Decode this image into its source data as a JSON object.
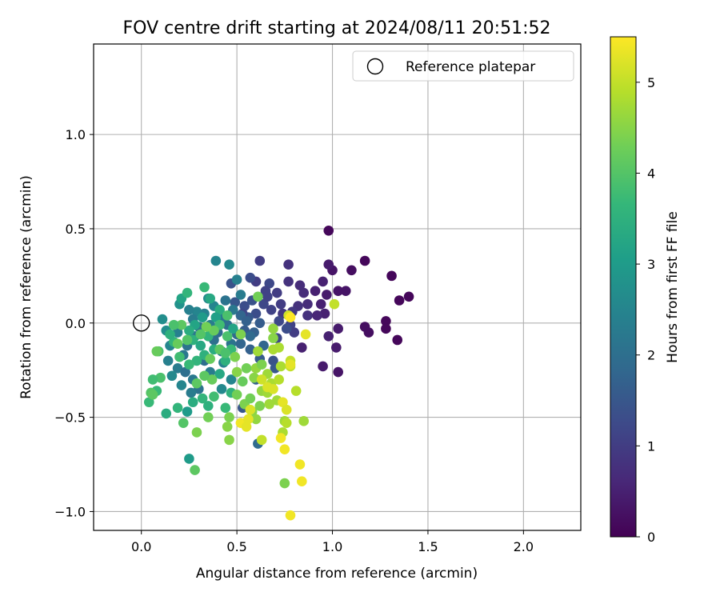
{
  "chart_data": {
    "type": "scatter",
    "title": "FOV centre drift starting at 2024/08/11 20:51:52",
    "xlabel": "Angular distance from reference (arcmin)",
    "ylabel": "Rotation from reference (arcmin)",
    "xlim": [
      -0.25,
      2.3
    ],
    "ylim": [
      -1.1,
      1.48
    ],
    "xticks": [
      0.0,
      0.5,
      1.0,
      1.5,
      2.0
    ],
    "xtick_labels": [
      "0.0",
      "0.5",
      "1.0",
      "1.5",
      "2.0"
    ],
    "yticks": [
      -1.0,
      -0.5,
      0.0,
      0.5,
      1.0
    ],
    "ytick_labels": [
      "−1.0",
      "−0.5",
      "0.0",
      "0.5",
      "1.0"
    ],
    "grid": true,
    "legend": {
      "placement": "top-right",
      "entries": [
        "Reference platepar"
      ]
    },
    "reference_point": {
      "x": 0.0,
      "y": 0.0,
      "label": "Reference platepar"
    },
    "colorbar": {
      "label": "Hours from first FF file",
      "range": [
        0,
        5.5
      ],
      "ticks": [
        0,
        1,
        2,
        3,
        4,
        5
      ],
      "tick_labels": [
        "0",
        "1",
        "2",
        "3",
        "4",
        "5"
      ],
      "colormap": "viridis"
    },
    "colors": {
      "viridis": [
        "#440154",
        "#482878",
        "#3e4989",
        "#31688e",
        "#26828e",
        "#1f9e89",
        "#35b779",
        "#6ece58",
        "#b5de2b",
        "#fde725"
      ]
    },
    "points": [
      [
        0.98,
        0.49,
        0.1
      ],
      [
        1.17,
        0.33,
        0.1
      ],
      [
        1.1,
        0.28,
        0.2
      ],
      [
        1.31,
        0.25,
        0.1
      ],
      [
        1.4,
        0.14,
        0.1
      ],
      [
        1.35,
        0.12,
        0.1
      ],
      [
        1.28,
        0.01,
        0.1
      ],
      [
        1.17,
        -0.02,
        0.2
      ],
      [
        1.19,
        -0.05,
        0.2
      ],
      [
        1.28,
        -0.03,
        0.1
      ],
      [
        1.34,
        -0.09,
        0.1
      ],
      [
        1.03,
        -0.26,
        0.3
      ],
      [
        0.95,
        -0.23,
        0.4
      ],
      [
        1.0,
        0.28,
        0.3
      ],
      [
        0.98,
        0.31,
        0.4
      ],
      [
        1.03,
        0.17,
        0.3
      ],
      [
        0.97,
        0.15,
        0.4
      ],
      [
        1.07,
        0.17,
        0.3
      ],
      [
        0.95,
        0.22,
        0.5
      ],
      [
        0.91,
        0.17,
        0.5
      ],
      [
        0.96,
        0.05,
        0.5
      ],
      [
        1.03,
        -0.03,
        0.4
      ],
      [
        0.98,
        -0.07,
        0.5
      ],
      [
        1.02,
        -0.13,
        0.4
      ],
      [
        0.84,
        -0.13,
        0.5
      ],
      [
        0.62,
        0.33,
        1.0
      ],
      [
        0.77,
        0.31,
        0.8
      ],
      [
        0.77,
        0.22,
        0.8
      ],
      [
        0.83,
        0.2,
        0.7
      ],
      [
        0.85,
        0.16,
        0.7
      ],
      [
        0.87,
        0.1,
        0.7
      ],
      [
        0.87,
        0.04,
        0.8
      ],
      [
        0.92,
        0.04,
        0.6
      ],
      [
        0.94,
        0.1,
        0.5
      ],
      [
        0.82,
        0.09,
        0.8
      ],
      [
        0.79,
        0.06,
        0.9
      ],
      [
        0.73,
        0.1,
        1.0
      ],
      [
        0.74,
        0.05,
        0.9
      ],
      [
        0.71,
        0.16,
        1.0
      ],
      [
        0.67,
        0.21,
        1.2
      ],
      [
        0.65,
        0.17,
        1.1
      ],
      [
        0.6,
        0.22,
        1.0
      ],
      [
        0.57,
        0.24,
        1.3
      ],
      [
        0.64,
        0.1,
        1.2
      ],
      [
        0.68,
        0.07,
        1.1
      ],
      [
        0.72,
        0.01,
        1.2
      ],
      [
        0.78,
        -0.01,
        1.1
      ],
      [
        0.8,
        -0.05,
        1.0
      ],
      [
        0.76,
        -0.03,
        1.3
      ],
      [
        0.71,
        -0.08,
        1.2
      ],
      [
        0.69,
        -0.2,
        1.4
      ],
      [
        0.7,
        -0.24,
        1.5
      ],
      [
        0.62,
        -0.19,
        1.6
      ],
      [
        0.6,
        -0.3,
        1.7
      ],
      [
        0.53,
        -0.45,
        1.5
      ],
      [
        0.47,
        0.21,
        1.4
      ],
      [
        0.49,
        0.11,
        1.5
      ],
      [
        0.54,
        0.09,
        1.3
      ],
      [
        0.58,
        0.12,
        1.4
      ],
      [
        0.6,
        0.05,
        1.3
      ],
      [
        0.56,
        0.03,
        1.5
      ],
      [
        0.62,
        0.0,
        1.6
      ],
      [
        0.59,
        -0.05,
        1.7
      ],
      [
        0.54,
        -0.04,
        1.6
      ],
      [
        0.52,
        -0.11,
        1.8
      ],
      [
        0.57,
        -0.14,
        1.7
      ],
      [
        0.64,
        -0.12,
        1.8
      ],
      [
        0.61,
        -0.64,
        1.9
      ],
      [
        0.53,
        0.05,
        1.2
      ],
      [
        0.66,
        0.14,
        1.1
      ],
      [
        0.39,
        0.33,
        2.5
      ],
      [
        0.46,
        0.31,
        2.6
      ],
      [
        0.5,
        0.23,
        2.4
      ],
      [
        0.52,
        0.15,
        2.3
      ],
      [
        0.48,
        0.07,
        2.2
      ],
      [
        0.44,
        0.12,
        2.1
      ],
      [
        0.42,
        0.03,
        2.2
      ],
      [
        0.45,
        -0.01,
        2.0
      ],
      [
        0.5,
        -0.06,
        1.9
      ],
      [
        0.47,
        -0.11,
        2.1
      ],
      [
        0.42,
        -0.15,
        2.2
      ],
      [
        0.38,
        -0.09,
        2.0
      ],
      [
        0.36,
        -0.01,
        2.3
      ],
      [
        0.33,
        0.05,
        2.4
      ],
      [
        0.29,
        0.06,
        2.5
      ],
      [
        0.25,
        0.07,
        2.4
      ],
      [
        0.27,
        0.02,
        2.3
      ],
      [
        0.3,
        -0.02,
        2.1
      ],
      [
        0.28,
        -0.07,
        2.2
      ],
      [
        0.24,
        -0.12,
        2.1
      ],
      [
        0.22,
        -0.17,
        2.2
      ],
      [
        0.19,
        -0.24,
        2.3
      ],
      [
        0.23,
        -0.26,
        2.0
      ],
      [
        0.27,
        -0.3,
        2.2
      ],
      [
        0.3,
        -0.35,
        2.1
      ],
      [
        0.26,
        -0.37,
        2.3
      ],
      [
        0.21,
        -0.33,
        2.5
      ],
      [
        0.16,
        -0.28,
        2.6
      ],
      [
        0.14,
        -0.2,
        2.4
      ],
      [
        0.15,
        -0.12,
        2.5
      ],
      [
        0.19,
        -0.05,
        2.4
      ],
      [
        0.13,
        -0.04,
        2.7
      ],
      [
        0.11,
        0.02,
        2.7
      ],
      [
        0.2,
        0.1,
        2.8
      ],
      [
        0.35,
        0.13,
        2.6
      ],
      [
        0.38,
        0.09,
        2.5
      ],
      [
        0.43,
        -0.21,
        2.4
      ],
      [
        0.47,
        -0.3,
        2.5
      ],
      [
        0.42,
        -0.35,
        2.6
      ],
      [
        0.36,
        -0.26,
        2.3
      ],
      [
        0.33,
        -0.2,
        2.0
      ],
      [
        0.4,
        -0.05,
        1.9
      ],
      [
        0.52,
        0.04,
        1.8
      ],
      [
        0.55,
        0.01,
        1.7
      ],
      [
        0.57,
        -0.07,
        1.9
      ],
      [
        0.21,
        0.13,
        3.2
      ],
      [
        0.24,
        0.16,
        3.6
      ],
      [
        0.33,
        0.19,
        3.7
      ],
      [
        0.36,
        0.13,
        3.3
      ],
      [
        0.41,
        0.07,
        3.4
      ],
      [
        0.39,
        0.03,
        3.1
      ],
      [
        0.32,
        0.03,
        3.0
      ],
      [
        0.28,
        -0.01,
        3.2
      ],
      [
        0.25,
        -0.04,
        3.4
      ],
      [
        0.27,
        -0.09,
        3.5
      ],
      [
        0.31,
        -0.12,
        3.3
      ],
      [
        0.35,
        -0.07,
        3.6
      ],
      [
        0.38,
        -0.14,
        3.4
      ],
      [
        0.33,
        -0.17,
        3.5
      ],
      [
        0.29,
        -0.2,
        3.6
      ],
      [
        0.25,
        -0.22,
        3.7
      ],
      [
        0.2,
        -0.18,
        3.8
      ],
      [
        0.17,
        -0.1,
        3.6
      ],
      [
        0.15,
        -0.06,
        3.5
      ],
      [
        0.09,
        -0.15,
        3.9
      ],
      [
        0.1,
        -0.29,
        3.9
      ],
      [
        0.06,
        -0.3,
        3.8
      ],
      [
        0.08,
        -0.36,
        3.7
      ],
      [
        0.05,
        -0.37,
        4.0
      ],
      [
        0.04,
        -0.42,
        3.7
      ],
      [
        0.13,
        -0.48,
        3.4
      ],
      [
        0.19,
        -0.45,
        3.6
      ],
      [
        0.24,
        -0.47,
        3.0
      ],
      [
        0.27,
        -0.42,
        3.4
      ],
      [
        0.32,
        -0.4,
        3.6
      ],
      [
        0.35,
        -0.44,
        3.5
      ],
      [
        0.38,
        -0.39,
        3.8
      ],
      [
        0.44,
        -0.45,
        3.7
      ],
      [
        0.47,
        -0.37,
        3.5
      ],
      [
        0.41,
        -0.27,
        3.3
      ],
      [
        0.44,
        -0.2,
        3.5
      ],
      [
        0.47,
        -0.14,
        3.7
      ],
      [
        0.45,
        -0.07,
        3.9
      ],
      [
        0.41,
        -0.01,
        3.8
      ],
      [
        0.45,
        0.04,
        3.9
      ],
      [
        0.48,
        -0.03,
        3.2
      ],
      [
        0.25,
        -0.72,
        3.0
      ],
      [
        0.28,
        -0.78,
        4.1
      ],
      [
        0.22,
        -0.53,
        4.0
      ],
      [
        0.06,
        -0.38,
        4.1
      ],
      [
        0.29,
        -0.32,
        4.1
      ],
      [
        0.37,
        -0.3,
        4.2
      ],
      [
        0.33,
        -0.28,
        4.1
      ],
      [
        0.36,
        -0.19,
        4.2
      ],
      [
        0.38,
        -0.04,
        4.2
      ],
      [
        0.34,
        -0.02,
        4.3
      ],
      [
        0.31,
        -0.06,
        4.0
      ],
      [
        0.21,
        -0.01,
        4.1
      ],
      [
        0.17,
        -0.01,
        3.9
      ],
      [
        0.19,
        -0.11,
        4.2
      ],
      [
        0.24,
        -0.09,
        4.0
      ],
      [
        0.08,
        -0.15,
        4.2
      ],
      [
        0.41,
        -0.14,
        4.1
      ],
      [
        0.44,
        -0.16,
        3.9
      ],
      [
        0.35,
        -0.5,
        4.3
      ],
      [
        0.29,
        -0.58,
        4.4
      ],
      [
        0.46,
        -0.5,
        4.4
      ],
      [
        0.45,
        -0.55,
        4.5
      ],
      [
        0.46,
        -0.62,
        4.5
      ],
      [
        0.54,
        -0.43,
        4.4
      ],
      [
        0.58,
        -0.47,
        4.5
      ],
      [
        0.57,
        -0.4,
        4.3
      ],
      [
        0.62,
        -0.44,
        4.4
      ],
      [
        0.6,
        -0.51,
        4.6
      ],
      [
        0.53,
        -0.31,
        4.2
      ],
      [
        0.55,
        -0.24,
        4.3
      ],
      [
        0.59,
        -0.29,
        4.5
      ],
      [
        0.6,
        -0.24,
        4.6
      ],
      [
        0.66,
        -0.27,
        4.7
      ],
      [
        0.63,
        -0.22,
        4.4
      ],
      [
        0.63,
        -0.36,
        4.6
      ],
      [
        0.66,
        -0.37,
        4.7
      ],
      [
        0.68,
        -0.32,
        4.8
      ],
      [
        0.67,
        -0.43,
        4.7
      ],
      [
        0.71,
        -0.41,
        4.7
      ],
      [
        0.72,
        -0.3,
        4.9
      ],
      [
        0.73,
        -0.23,
        4.8
      ],
      [
        0.69,
        -0.14,
        4.8
      ],
      [
        0.72,
        -0.13,
        4.8
      ],
      [
        0.69,
        -0.03,
        4.6
      ],
      [
        0.69,
        -0.08,
        4.5
      ],
      [
        0.75,
        -0.52,
        4.7
      ],
      [
        0.75,
        -0.85,
        4.4
      ],
      [
        0.76,
        -0.53,
        4.9
      ],
      [
        0.74,
        -0.58,
        4.8
      ],
      [
        0.81,
        -0.36,
        4.9
      ],
      [
        0.85,
        -0.52,
        4.7
      ],
      [
        0.78,
        -0.2,
        5.0
      ],
      [
        0.78,
        -0.23,
        5.0
      ],
      [
        0.61,
        -0.15,
        4.7
      ],
      [
        0.63,
        -0.62,
        5.0
      ],
      [
        0.61,
        0.14,
        4.3
      ],
      [
        0.52,
        -0.06,
        4.4
      ],
      [
        0.49,
        -0.18,
        4.4
      ],
      [
        0.5,
        -0.26,
        4.5
      ],
      [
        0.5,
        -0.38,
        4.3
      ],
      [
        1.01,
        0.1,
        5.0
      ],
      [
        0.77,
        0.04,
        5.1
      ],
      [
        0.86,
        -0.06,
        5.3
      ],
      [
        0.78,
        0.03,
        5.5
      ],
      [
        0.73,
        -0.61,
        5.4
      ],
      [
        0.75,
        -0.67,
        5.4
      ],
      [
        0.83,
        -0.75,
        5.4
      ],
      [
        0.84,
        -0.84,
        5.4
      ],
      [
        0.78,
        -1.02,
        5.4
      ],
      [
        0.74,
        -0.42,
        5.3
      ],
      [
        0.76,
        -0.46,
        5.2
      ],
      [
        0.52,
        -0.53,
        5.4
      ],
      [
        0.55,
        -0.55,
        5.3
      ],
      [
        0.56,
        -0.51,
        5.3
      ],
      [
        0.66,
        -0.34,
        5.2
      ],
      [
        0.63,
        -0.3,
        5.1
      ],
      [
        0.69,
        -0.35,
        5.2
      ],
      [
        0.57,
        -0.46,
        5.2
      ],
      [
        0.78,
        -0.22,
        5.3
      ]
    ]
  }
}
